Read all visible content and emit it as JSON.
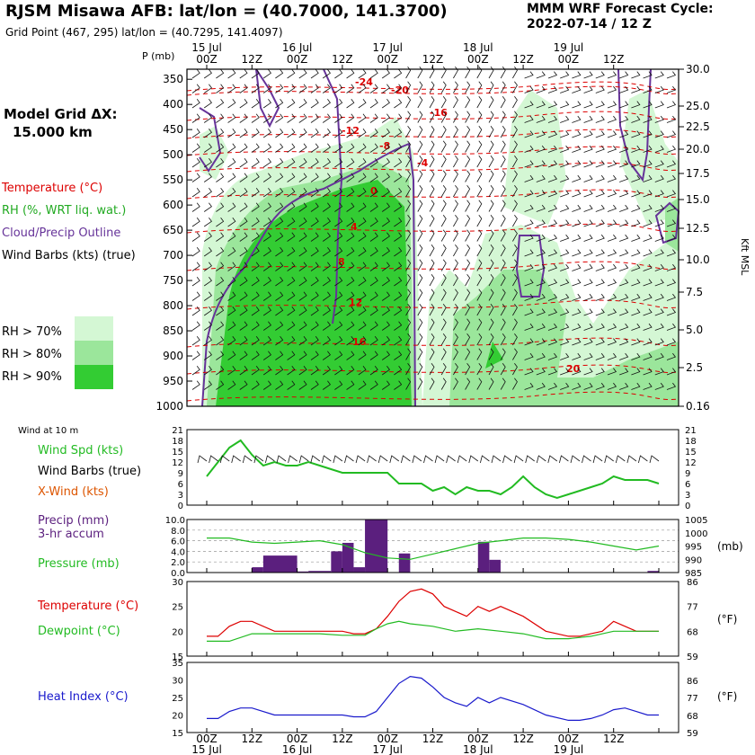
{
  "header": {
    "title": "RJSM Misawa AFB:  lat/lon = (40.7000, 141.3700)",
    "gridpoint": "Grid Point (467, 295) lat/lon = (40.7295, 141.4097)",
    "cycle_line1": "MMM WRF Forecast Cycle:",
    "cycle_line2": "2022-07-14 / 12  Z"
  },
  "model": {
    "line1": "Model Grid ΔX:",
    "line2": "15.000 km"
  },
  "legend": {
    "temperature": "Temperature (°C)",
    "rh": "RH (%, WRT liq. wat.)",
    "cloud": "Cloud/Precip Outline",
    "barbs": "Wind Barbs (kts) (true)",
    "rh70": "RH > 70%",
    "rh80": "RH > 80%",
    "rh90": "RH > 90%",
    "wind10m": "Wind at 10 m",
    "wspd": "Wind Spd (kts)",
    "wbarbs": "Wind Barbs (true)",
    "xwind": "X-Wind (kts)",
    "precip1": "Precip (mm)",
    "precip2": "3-hr accum",
    "pressure": "Pressure (mb)",
    "temp": "Temperature (°C)",
    "dewpoint": "Dewpoint (°C)",
    "heat": "Heat Index (°C)"
  },
  "colors": {
    "rh70": "#d4f7d4",
    "rh80": "#9be69b",
    "rh90": "#33cc33",
    "temperature": "#dd0000",
    "cloud": "#663399",
    "green": "#22bb22",
    "precip": "#5b1f7e",
    "heat": "#1a1acc",
    "xwind": "#dd5500"
  },
  "chart_data": [
    {
      "type": "heatmap",
      "name": "time-height cross section",
      "yunit": "P (mb)",
      "y_right_unit": "Kft MSL",
      "pressure_levels": [
        350,
        400,
        450,
        500,
        550,
        600,
        650,
        700,
        750,
        800,
        850,
        900,
        950,
        1000
      ],
      "kft_ticks": [
        "30.0",
        "25.0",
        "22.5",
        "20.0",
        "17.5",
        "15.0",
        "12.5",
        "10.0",
        "7.5",
        "5.0",
        "2.5",
        "0.16"
      ],
      "time_ticks": [
        "00Z",
        "12Z",
        "00Z",
        "12Z",
        "00Z",
        "12Z",
        "00Z",
        "12Z",
        "00Z",
        "12Z"
      ],
      "date_labels": [
        "15 Jul",
        "16 Jul",
        "17 Jul",
        "18 Jul",
        "19 Jul"
      ],
      "temperature_labels": [
        "-24",
        "-20",
        "-16",
        "-12",
        "-8",
        "-4",
        "0",
        "4",
        "8",
        "12",
        "16",
        "20"
      ]
    },
    {
      "type": "line",
      "name": "wind at 10 m",
      "ylim": [
        0,
        21
      ],
      "yticks": [
        0,
        3,
        6,
        9,
        12,
        15,
        18,
        21
      ],
      "series": [
        {
          "name": "Wind Spd (kts)",
          "x": [
            0,
            3,
            6,
            9,
            12,
            15,
            18,
            21,
            24,
            27,
            30,
            33,
            36,
            39,
            42,
            45,
            48,
            51,
            54,
            57,
            60,
            63,
            66,
            69,
            72,
            75,
            78,
            81,
            84,
            87,
            90,
            93,
            96,
            99,
            102,
            105,
            108,
            111,
            114,
            117,
            120
          ],
          "values": [
            8,
            12,
            16,
            18,
            14,
            11,
            12,
            11,
            11,
            12,
            11,
            10,
            9,
            9,
            9,
            9,
            9,
            6,
            6,
            6,
            4,
            5,
            3,
            5,
            4,
            4,
            3,
            5,
            8,
            5,
            3,
            2,
            3,
            4,
            5,
            6,
            8,
            7,
            7,
            7,
            6
          ]
        }
      ]
    },
    {
      "type": "bar",
      "name": "precip and pressure",
      "ylim": [
        0,
        10
      ],
      "yticks": [
        "0.0",
        "2.0",
        "4.0",
        "6.0",
        "8.0",
        "10.0"
      ],
      "y2ticks": [
        985,
        990,
        995,
        1000,
        1005
      ],
      "precip_bars": [
        {
          "t0": 12,
          "t1": 15,
          "value": 1.0
        },
        {
          "t0": 15,
          "t1": 24,
          "value": 3.2
        },
        {
          "t0": 24,
          "t1": 27,
          "value": 0.2
        },
        {
          "t0": 27,
          "t1": 33,
          "value": 0.3
        },
        {
          "t0": 33,
          "t1": 36,
          "value": 4.0
        },
        {
          "t0": 36,
          "t1": 39,
          "value": 5.6
        },
        {
          "t0": 39,
          "t1": 42,
          "value": 1.0
        },
        {
          "t0": 42,
          "t1": 48,
          "value": 10.0
        },
        {
          "t0": 51,
          "t1": 54,
          "value": 3.6
        },
        {
          "t0": 72,
          "t1": 75,
          "value": 5.8
        },
        {
          "t0": 75,
          "t1": 78,
          "value": 2.4
        },
        {
          "t0": 117,
          "t1": 120,
          "value": 0.3
        }
      ],
      "pressure_mb": {
        "x": [
          0,
          6,
          12,
          18,
          24,
          30,
          36,
          42,
          48,
          54,
          60,
          66,
          72,
          78,
          84,
          90,
          96,
          102,
          108,
          114,
          120
        ],
        "values": [
          998,
          998,
          996.5,
          996,
          996.5,
          997,
          995.5,
          992.5,
          990.5,
          990,
          992,
          994,
          996,
          997,
          998,
          998,
          997.5,
          996.5,
          995,
          993.5,
          995
        ]
      }
    },
    {
      "type": "line",
      "name": "temperature and dewpoint",
      "ylim": [
        15,
        30
      ],
      "yticks": [
        15,
        20,
        25,
        30
      ],
      "y2ticks": [
        59,
        68,
        77,
        86
      ],
      "series": [
        {
          "name": "Temperature (°C)",
          "x": [
            0,
            3,
            6,
            9,
            12,
            18,
            24,
            30,
            36,
            39,
            42,
            45,
            48,
            51,
            54,
            57,
            60,
            63,
            66,
            69,
            72,
            75,
            78,
            84,
            90,
            96,
            99,
            102,
            105,
            108,
            111,
            114,
            117,
            120
          ],
          "values": [
            19,
            19,
            21,
            22,
            22,
            20,
            20,
            20,
            20,
            19.5,
            19.5,
            20.5,
            23,
            26,
            28,
            28.5,
            27.5,
            25,
            24,
            23,
            25,
            24,
            25,
            23,
            20,
            19,
            19,
            19.5,
            20,
            22,
            21,
            20,
            20,
            20
          ]
        },
        {
          "name": "Dewpoint (°C)",
          "x": [
            0,
            6,
            12,
            18,
            24,
            30,
            36,
            42,
            45,
            48,
            51,
            54,
            60,
            66,
            72,
            78,
            84,
            90,
            96,
            102,
            108,
            114,
            120
          ],
          "values": [
            18,
            18,
            19.5,
            19.5,
            19.5,
            19.5,
            19.2,
            19.2,
            20.5,
            21.5,
            22,
            21.5,
            21,
            20,
            20.5,
            20,
            19.5,
            18.5,
            18.5,
            19,
            20,
            20,
            20
          ]
        }
      ]
    },
    {
      "type": "line",
      "name": "heat index",
      "ylim": [
        15,
        35
      ],
      "yticks": [
        15,
        20,
        25,
        30,
        35
      ],
      "y2ticks": [
        59,
        68,
        77,
        86
      ],
      "series": [
        {
          "name": "Heat Index (°C)",
          "x": [
            0,
            3,
            6,
            9,
            12,
            18,
            24,
            30,
            36,
            39,
            42,
            45,
            48,
            51,
            54,
            57,
            60,
            63,
            66,
            69,
            72,
            75,
            78,
            84,
            90,
            96,
            99,
            102,
            105,
            108,
            111,
            114,
            117,
            120
          ],
          "values": [
            19,
            19,
            21,
            22,
            22,
            20,
            20,
            20,
            20,
            19.5,
            19.5,
            21,
            25,
            29,
            31,
            30.5,
            28,
            25,
            23.5,
            22.5,
            25,
            23.5,
            25,
            23,
            20,
            18.5,
            18.5,
            19,
            20,
            21.5,
            22,
            21,
            20,
            20
          ]
        }
      ]
    }
  ]
}
